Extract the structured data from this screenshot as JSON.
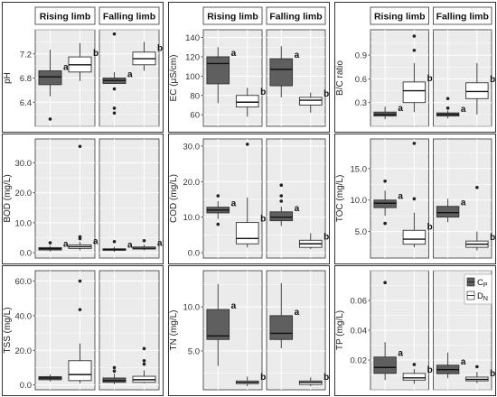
{
  "colors": {
    "cp_fill": "#5f5f5f",
    "dn_fill": "#ffffff",
    "panel_bg": "#ebebeb",
    "grid": "#ffffff",
    "border": "#333333"
  },
  "legend": {
    "cp_symbol": "C",
    "cp_sub": "P",
    "dn_symbol": "D",
    "dn_sub": "N"
  },
  "chart_data": [
    {
      "id": "ph",
      "type": "box",
      "ylabel": "pH",
      "ylim": [
        6.0,
        7.6
      ],
      "yticks": [
        "6.4",
        "6.8",
        "7.2"
      ],
      "ytick_values": [
        6.4,
        6.8,
        7.2
      ],
      "facets": [
        {
          "label": "Rising limb",
          "groups": [
            {
              "name": "Cp",
              "min": 6.5,
              "q1": 6.69,
              "median": 6.82,
              "q3": 6.92,
              "max": 7.27,
              "outliers": [
                6.12
              ],
              "letter": "a"
            },
            {
              "name": "Dn",
              "min": 6.75,
              "q1": 6.9,
              "median": 7.02,
              "q3": 7.15,
              "max": 7.38,
              "outliers": [],
              "letter": "b"
            }
          ]
        },
        {
          "label": "Falling limb",
          "groups": [
            {
              "name": "Cp",
              "min": 6.7,
              "q1": 6.71,
              "median": 6.76,
              "q3": 6.8,
              "max": 6.9,
              "outliers": [
                7.53,
                6.62,
                6.3,
                6.22
              ],
              "letter": "a"
            },
            {
              "name": "Dn",
              "min": 6.92,
              "q1": 7.02,
              "median": 7.12,
              "q3": 7.23,
              "max": 7.4,
              "outliers": [],
              "letter": "b"
            }
          ]
        }
      ]
    },
    {
      "id": "ec",
      "type": "box",
      "ylabel": "EC (μS/cm)",
      "ylim": [
        48,
        148
      ],
      "yticks": [
        "60",
        "80",
        "100",
        "120",
        "140"
      ],
      "ytick_values": [
        60,
        80,
        100,
        120,
        140
      ],
      "facets": [
        {
          "label": "Rising limb",
          "groups": [
            {
              "name": "Cp",
              "min": 72,
              "q1": 92,
              "median": 113,
              "q3": 120,
              "max": 130,
              "outliers": [],
              "letter": "a"
            },
            {
              "name": "Dn",
              "min": 58,
              "q1": 68,
              "median": 73,
              "q3": 80,
              "max": 88,
              "outliers": [],
              "letter": "b"
            }
          ]
        },
        {
          "label": "Falling limb",
          "groups": [
            {
              "name": "Cp",
              "min": 78,
              "q1": 90,
              "median": 107,
              "q3": 118,
              "max": 131,
              "outliers": [],
              "letter": "a"
            },
            {
              "name": "Dn",
              "min": 62,
              "q1": 70,
              "median": 75,
              "q3": 78,
              "max": 83,
              "outliers": [],
              "letter": "b"
            }
          ]
        }
      ]
    },
    {
      "id": "bc",
      "type": "box",
      "ylabel": "B/C ratio",
      "ylim": [
        0.0,
        1.22
      ],
      "yticks": [
        "0.3",
        "0.6",
        "0.9"
      ],
      "ytick_values": [
        0.3,
        0.6,
        0.9
      ],
      "facets": [
        {
          "label": "Rising limb",
          "groups": [
            {
              "name": "Cp",
              "min": 0.09,
              "q1": 0.13,
              "median": 0.15,
              "q3": 0.18,
              "max": 0.25,
              "outliers": [],
              "letter": "a"
            },
            {
              "name": "Dn",
              "min": 0.18,
              "q1": 0.3,
              "median": 0.45,
              "q3": 0.56,
              "max": 0.8,
              "outliers": [
                1.14,
                0.96
              ],
              "letter": "b"
            }
          ]
        },
        {
          "label": "Falling limb",
          "groups": [
            {
              "name": "Cp",
              "min": 0.1,
              "q1": 0.13,
              "median": 0.15,
              "q3": 0.17,
              "max": 0.2,
              "outliers": [
                0.35,
                0.23
              ],
              "letter": "a"
            },
            {
              "name": "Dn",
              "min": 0.15,
              "q1": 0.35,
              "median": 0.44,
              "q3": 0.55,
              "max": 0.8,
              "outliers": [],
              "letter": "b"
            }
          ]
        }
      ]
    },
    {
      "id": "bod",
      "type": "box",
      "ylabel": "BOD (mg/L)",
      "ylim": [
        -1.8,
        38
      ],
      "yticks": [
        "0.0",
        "10.0",
        "20.0",
        "30.0"
      ],
      "ytick_values": [
        0,
        10,
        20,
        30
      ],
      "facets": [
        {
          "label": "Rising limb",
          "groups": [
            {
              "name": "Cp",
              "min": 0.4,
              "q1": 0.9,
              "median": 1.3,
              "q3": 1.7,
              "max": 2.3,
              "outliers": [
                3.3
              ],
              "letter": "a"
            },
            {
              "name": "Dn",
              "min": 0.8,
              "q1": 1.4,
              "median": 2.0,
              "q3": 2.6,
              "max": 3.6,
              "outliers": [
                35.5,
                5.3,
                4.7
              ],
              "letter": "a"
            }
          ]
        },
        {
          "label": "Falling limb",
          "groups": [
            {
              "name": "Cp",
              "min": 0.3,
              "q1": 0.8,
              "median": 1.0,
              "q3": 1.3,
              "max": 2.0,
              "outliers": [
                3.7
              ],
              "letter": "a"
            },
            {
              "name": "Dn",
              "min": 0.8,
              "q1": 1.2,
              "median": 1.5,
              "q3": 1.9,
              "max": 2.7,
              "outliers": [
                4.0
              ],
              "letter": "a"
            }
          ]
        }
      ]
    },
    {
      "id": "cod",
      "type": "box",
      "ylabel": "COD (mg/L)",
      "ylim": [
        -1.5,
        32
      ],
      "yticks": [
        "0.0",
        "10.0",
        "20.0",
        "30.0"
      ],
      "ytick_values": [
        0,
        10,
        20,
        30
      ],
      "facets": [
        {
          "label": "Rising limb",
          "groups": [
            {
              "name": "Cp",
              "min": 9.5,
              "q1": 11.2,
              "median": 12.0,
              "q3": 12.8,
              "max": 14.5,
              "outliers": [
                16.0,
                8.0
              ],
              "letter": "a"
            },
            {
              "name": "Dn",
              "min": 1.5,
              "q1": 2.5,
              "median": 4.0,
              "q3": 8.5,
              "max": 15.5,
              "outliers": [
                30.5
              ],
              "letter": "b"
            }
          ]
        },
        {
          "label": "Falling limb",
          "groups": [
            {
              "name": "Cp",
              "min": 7.5,
              "q1": 9.0,
              "median": 10.0,
              "q3": 11.5,
              "max": 13.0,
              "outliers": [
                19.0,
                16.0,
                14.5
              ],
              "letter": "a"
            },
            {
              "name": "Dn",
              "min": 1.0,
              "q1": 1.5,
              "median": 2.5,
              "q3": 3.5,
              "max": 5.5,
              "outliers": [],
              "letter": "b"
            }
          ]
        }
      ]
    },
    {
      "id": "toc",
      "type": "box",
      "ylabel": "TOC (mg/L)",
      "ylim": [
        0.8,
        19.7
      ],
      "yticks": [
        "5.0",
        "10.0",
        "15.0"
      ],
      "ytick_values": [
        5,
        10,
        15
      ],
      "facets": [
        {
          "label": "Rising limb",
          "groups": [
            {
              "name": "Cp",
              "min": 7.5,
              "q1": 8.8,
              "median": 9.5,
              "q3": 10.0,
              "max": 11.5,
              "outliers": [
                13.0,
                6.3
              ],
              "letter": "a"
            },
            {
              "name": "Dn",
              "min": 2.5,
              "q1": 3.0,
              "median": 3.8,
              "q3": 5.2,
              "max": 8.0,
              "outliers": [
                19.0,
                10.2
              ],
              "letter": "b"
            }
          ]
        },
        {
          "label": "Falling limb",
          "groups": [
            {
              "name": "Cp",
              "min": 6.5,
              "q1": 7.3,
              "median": 8.0,
              "q3": 9.0,
              "max": 10.2,
              "outliers": [],
              "letter": "a"
            },
            {
              "name": "Dn",
              "min": 2.0,
              "q1": 2.5,
              "median": 3.0,
              "q3": 3.5,
              "max": 5.0,
              "outliers": [
                12.0
              ],
              "letter": "b"
            }
          ]
        }
      ]
    },
    {
      "id": "tss",
      "type": "box",
      "ylabel": "TSS (mg/L)",
      "ylim": [
        -2.8,
        66
      ],
      "yticks": [
        "0.0",
        "20.0",
        "40.0",
        "60.0"
      ],
      "ytick_values": [
        0,
        20,
        40,
        60
      ],
      "facets": [
        {
          "label": "Rising limb",
          "groups": [
            {
              "name": "Cp",
              "min": 2.0,
              "q1": 3.0,
              "median": 4.0,
              "q3": 4.8,
              "max": 6.0,
              "outliers": [],
              "letter": ""
            },
            {
              "name": "Dn",
              "min": 1.0,
              "q1": 2.5,
              "median": 6.0,
              "q3": 14.0,
              "max": 24.0,
              "outliers": [
                60.0,
                43.5
              ],
              "letter": ""
            }
          ]
        },
        {
          "label": "Falling limb",
          "groups": [
            {
              "name": "Cp",
              "min": 0.5,
              "q1": 1.5,
              "median": 2.5,
              "q3": 4.0,
              "max": 6.5,
              "outliers": [
                10.0,
                8.0
              ],
              "letter": ""
            },
            {
              "name": "Dn",
              "min": 1.0,
              "q1": 1.5,
              "median": 3.0,
              "q3": 5.0,
              "max": 8.5,
              "outliers": [
                21.0,
                14.0,
                12.0
              ],
              "letter": ""
            }
          ]
        }
      ]
    },
    {
      "id": "tn",
      "type": "box",
      "ylabel": "TN (mg/L)",
      "ylim": [
        0.6,
        14.1
      ],
      "yticks": [
        "5.0",
        "10.0"
      ],
      "ytick_values": [
        5,
        10
      ],
      "facets": [
        {
          "label": "Rising limb",
          "groups": [
            {
              "name": "Cp",
              "min": 3.3,
              "q1": 6.3,
              "median": 6.7,
              "q3": 9.7,
              "max": 12.6,
              "outliers": [],
              "letter": "a"
            },
            {
              "name": "Dn",
              "min": 1.0,
              "q1": 1.3,
              "median": 1.45,
              "q3": 1.6,
              "max": 2.1,
              "outliers": [],
              "letter": "b"
            }
          ]
        },
        {
          "label": "Falling limb",
          "groups": [
            {
              "name": "Cp",
              "min": 5.3,
              "q1": 6.3,
              "median": 7.0,
              "q3": 9.0,
              "max": 12.7,
              "outliers": [],
              "letter": "a"
            },
            {
              "name": "Dn",
              "min": 1.0,
              "q1": 1.2,
              "median": 1.45,
              "q3": 1.6,
              "max": 2.0,
              "outliers": [],
              "letter": "b"
            }
          ]
        }
      ]
    },
    {
      "id": "tp",
      "type": "box",
      "ylabel": "TP (mg/L)",
      "ylim": [
        0.0,
        0.08
      ],
      "yticks": [
        "0.02",
        "0.04",
        "0.06"
      ],
      "ytick_values": [
        0.02,
        0.04,
        0.06
      ],
      "facets": [
        {
          "label": "Rising limb",
          "groups": [
            {
              "name": "Cp",
              "min": 0.0065,
              "q1": 0.011,
              "median": 0.015,
              "q3": 0.022,
              "max": 0.032,
              "outliers": [
                0.072
              ],
              "letter": "a"
            },
            {
              "name": "Dn",
              "min": 0.004,
              "q1": 0.0065,
              "median": 0.008,
              "q3": 0.011,
              "max": 0.014,
              "outliers": [
                0.017
              ],
              "letter": "b"
            }
          ]
        },
        {
          "label": "Falling limb",
          "groups": [
            {
              "name": "Cp",
              "min": 0.0078,
              "q1": 0.0108,
              "median": 0.0135,
              "q3": 0.0165,
              "max": 0.025,
              "outliers": [],
              "letter": "a"
            },
            {
              "name": "Dn",
              "min": 0.0045,
              "q1": 0.006,
              "median": 0.007,
              "q3": 0.0085,
              "max": 0.012,
              "outliers": [
                0.0155
              ],
              "letter": "b"
            }
          ]
        }
      ]
    }
  ]
}
